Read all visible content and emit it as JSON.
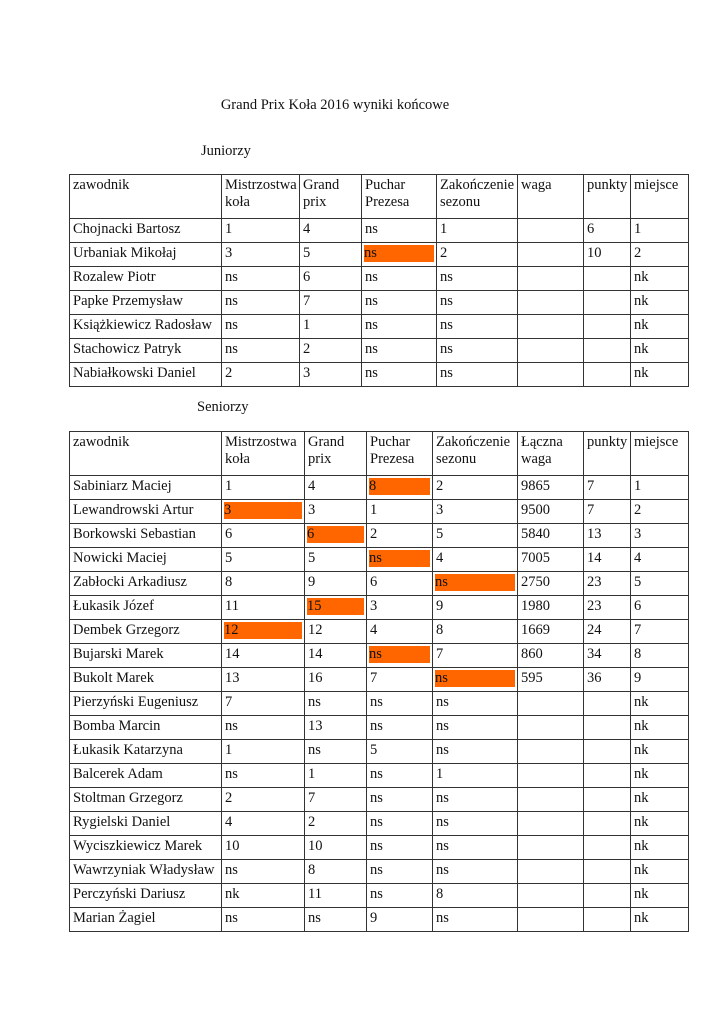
{
  "title": "Grand Prix Koła  2016 wyniki końcowe",
  "highlight_color": "#ff6600",
  "juniors": {
    "label": "Juniorzy",
    "headers": [
      "zawodnik",
      "Mistrzostwa koła",
      "Grand prix",
      "Puchar Prezesa",
      "Zakończenie sezonu",
      "waga",
      "punkty",
      "miejsce"
    ],
    "rows": [
      [
        "Chojnacki Bartosz",
        "1",
        "4",
        "ns",
        "1",
        "",
        "6",
        "1"
      ],
      [
        "Urbaniak Mikołaj",
        "3",
        "5",
        "ns",
        "2",
        "",
        "10",
        "2"
      ],
      [
        "Rozalew Piotr",
        "ns",
        "6",
        "ns",
        "ns",
        "",
        "",
        "nk"
      ],
      [
        "Papke Przemysław",
        "ns",
        "7",
        "ns",
        "ns",
        "",
        "",
        "nk"
      ],
      [
        "Książkiewicz Radosław",
        "ns",
        "1",
        "ns",
        "ns",
        "",
        "",
        "nk"
      ],
      [
        "Stachowicz Patryk",
        "ns",
        "2",
        "ns",
        "ns",
        "",
        "",
        "nk"
      ],
      [
        "Nabiałkowski Daniel",
        "2",
        "3",
        "ns",
        "ns",
        "",
        "",
        "nk"
      ]
    ],
    "highlighted": [
      [
        1,
        3
      ]
    ]
  },
  "seniors": {
    "label": "Seniorzy",
    "headers": [
      "zawodnik",
      "Mistrzostwa koła",
      "Grand prix",
      "Puchar Prezesa",
      "Zakończenie sezonu",
      "Łączna waga",
      "punkty",
      "miejsce"
    ],
    "rows": [
      [
        "Sabiniarz Maciej",
        "1",
        "4",
        "8",
        "2",
        "9865",
        "7",
        "1"
      ],
      [
        "Lewandrowski Artur",
        "3",
        "3",
        "1",
        "3",
        "9500",
        "7",
        "2"
      ],
      [
        "Borkowski Sebastian",
        "6",
        "6",
        "2",
        "5",
        "5840",
        "13",
        "3"
      ],
      [
        "Nowicki Maciej",
        "5",
        "5",
        "ns",
        "4",
        "7005",
        "14",
        "4"
      ],
      [
        "Zabłocki Arkadiusz",
        "8",
        "9",
        "6",
        "ns",
        "2750",
        "23",
        "5"
      ],
      [
        "Łukasik Józef",
        "11",
        "15",
        "3",
        "9",
        "1980",
        "23",
        "6"
      ],
      [
        "Dembek Grzegorz",
        "12",
        "12",
        "4",
        "8",
        "1669",
        "24",
        "7"
      ],
      [
        "Bujarski Marek",
        "14",
        "14",
        "ns",
        "7",
        "860",
        "34",
        "8"
      ],
      [
        "Bukolt Marek",
        "13",
        "16",
        "7",
        "ns",
        "595",
        "36",
        "9"
      ],
      [
        "Pierzyński Eugeniusz",
        "7",
        "ns",
        "ns",
        "ns",
        "",
        "",
        "nk"
      ],
      [
        "Bomba Marcin",
        "ns",
        "13",
        "ns",
        "ns",
        "",
        "",
        "nk"
      ],
      [
        "Łukasik Katarzyna",
        "1",
        "ns",
        "5",
        "ns",
        "",
        "",
        "nk"
      ],
      [
        "Balcerek Adam",
        "ns",
        "1",
        "ns",
        "1",
        "",
        "",
        "nk"
      ],
      [
        "Stoltman Grzegorz",
        "2",
        "7",
        "ns",
        "ns",
        "",
        "",
        "nk"
      ],
      [
        "Rygielski Daniel",
        "4",
        "2",
        "ns",
        "ns",
        "",
        "",
        "nk"
      ],
      [
        "Wyciszkiewicz Marek",
        "10",
        "10",
        "ns",
        "ns",
        "",
        "",
        "nk"
      ],
      [
        "Wawrzyniak Władysław",
        "ns",
        "8",
        "ns",
        "ns",
        "",
        "",
        "nk"
      ],
      [
        "Perczyński Dariusz",
        "nk",
        "11",
        "ns",
        "8",
        "",
        "",
        "nk"
      ],
      [
        "Marian Żagiel",
        "ns",
        "ns",
        "9",
        "ns",
        "",
        "",
        "nk"
      ]
    ],
    "highlighted": [
      [
        0,
        3
      ],
      [
        1,
        1
      ],
      [
        2,
        2
      ],
      [
        3,
        3
      ],
      [
        4,
        4
      ],
      [
        5,
        2
      ],
      [
        6,
        1
      ],
      [
        7,
        3
      ],
      [
        8,
        4
      ]
    ]
  }
}
